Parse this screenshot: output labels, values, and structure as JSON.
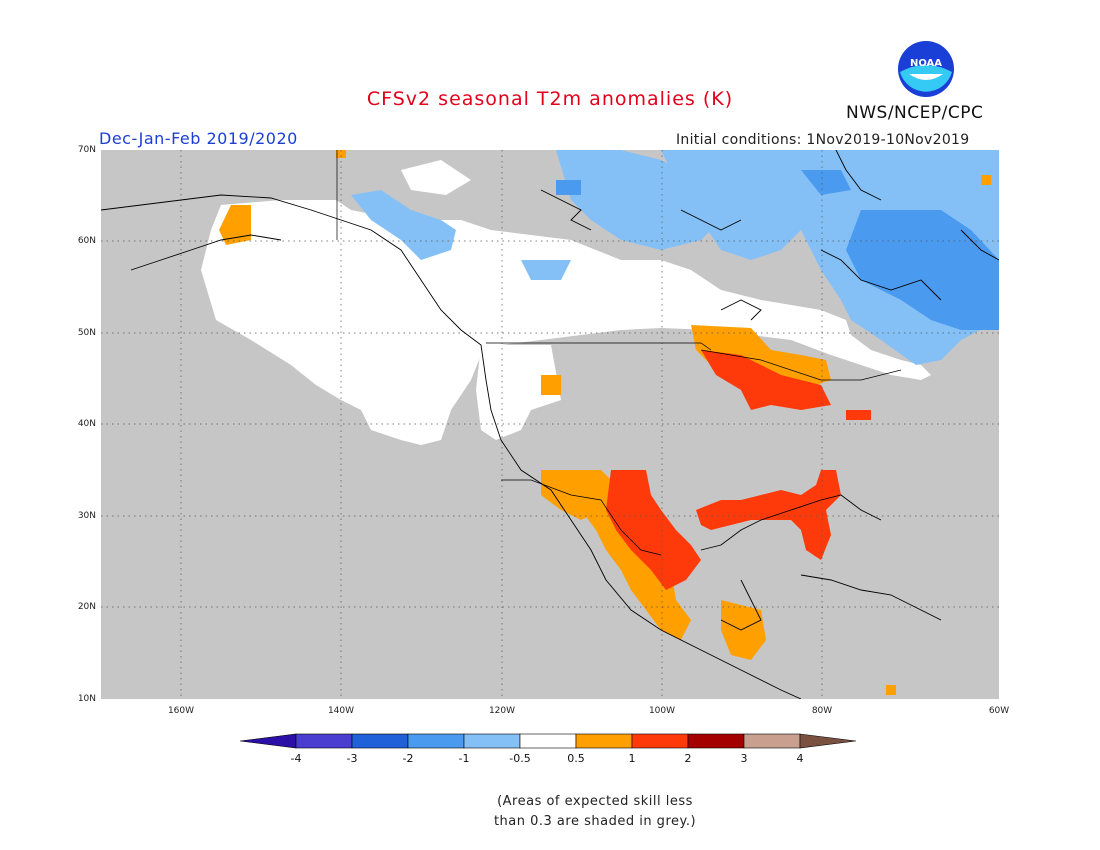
{
  "header": {
    "title": "CFSv2 seasonal T2m anomalies (K)",
    "season": "Dec-Jan-Feb 2019/2020",
    "initial_conditions": "Initial conditions: 1Nov2019-10Nov2019",
    "agency": "NWS/NCEP/CPC",
    "logo_text": "NOAA"
  },
  "map": {
    "lat_labels": [
      "70N",
      "60N",
      "50N",
      "40N",
      "30N",
      "20N",
      "10N"
    ],
    "lon_labels": [
      "160W",
      "140W",
      "120W",
      "100W",
      "80W",
      "60W"
    ],
    "extent": {
      "lon": [
        -172,
        -60
      ],
      "lat": [
        10,
        70
      ]
    },
    "background_color": "#c6c6c6"
  },
  "colorbar": {
    "tick_labels": [
      "-4",
      "-3",
      "-2",
      "-1",
      "-0.5",
      "0.5",
      "1",
      "2",
      "3",
      "4"
    ],
    "colors": [
      "#2b0fa6",
      "#4a3ed1",
      "#2060d8",
      "#4a9af0",
      "#84c0f6",
      "#ffffff",
      "#ff9f00",
      "#ff3a0a",
      "#a50000",
      "#c9a090",
      "#7a5040"
    ]
  },
  "footnote": {
    "line1": "(Areas of expected skill less",
    "line2": "than 0.3 are shaded in grey.)"
  }
}
